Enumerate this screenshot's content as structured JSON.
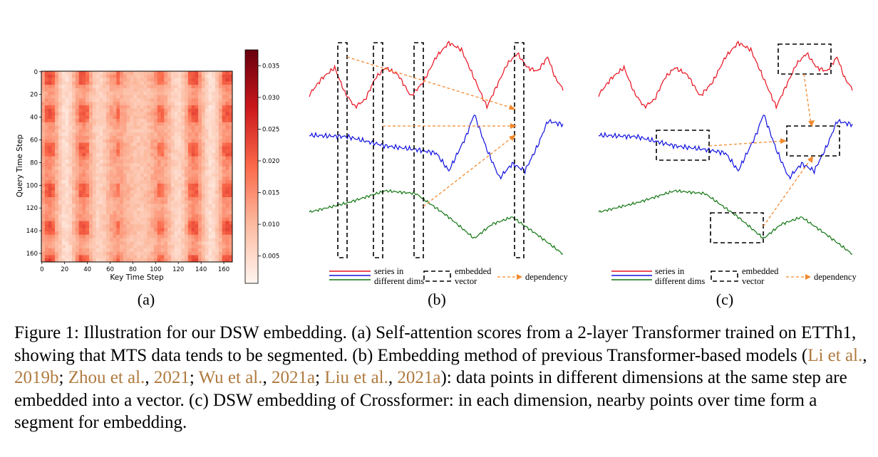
{
  "figure": {
    "panel_labels": [
      "(a)",
      "(b)",
      "(c)"
    ],
    "heatmap": {
      "ylabel": "Query Time Step",
      "xlabel": "Key Time Step",
      "y_ticks": [
        "0",
        "20",
        "40",
        "60",
        "80",
        "100",
        "120",
        "140",
        "160"
      ],
      "x_ticks": [
        "0",
        "20",
        "40",
        "60",
        "80",
        "100",
        "120",
        "140",
        "160"
      ],
      "colorbar_ticks": [
        "0.035",
        "0.030",
        "0.025",
        "0.020",
        "0.015",
        "0.010",
        "0.005"
      ],
      "colormap": [
        "#fff5f0",
        "#fcbba1",
        "#fb6a4a",
        "#cb181d",
        "#67000d"
      ]
    },
    "legend": {
      "series_label_1": "series in",
      "series_label_2": "different dims",
      "embedded_label_1": "embedded",
      "embedded_label_2": "vector",
      "dependency_label": "dependency"
    },
    "colors": {
      "red": "#e8101e",
      "blue": "#1010e0",
      "green": "#117511",
      "orange": "#f28a2e"
    }
  },
  "caption": {
    "figure_num": "Figure 1:",
    "text_1": " Illustration for our DSW embedding. (a) Self-attention scores from a 2-layer Transformer trained on ETTh1, showing that MTS data tends to be segmented. (b) Embedding method of previous Transformer-based models (",
    "cite_1a": "Li et al.",
    "cite_1b": "2019b",
    "cite_2a": "Zhou et al.",
    "cite_2b": "2021",
    "cite_3a": "Wu et al.",
    "cite_3b": "2021a",
    "cite_4a": "Liu et al.",
    "cite_4b": "2021a",
    "text_2": "): data points in different dimensions at the same step are embedded into a vector. (c) DSW embedding of Crossformer: in each dimension, nearby points over time form a segment for embedding."
  }
}
